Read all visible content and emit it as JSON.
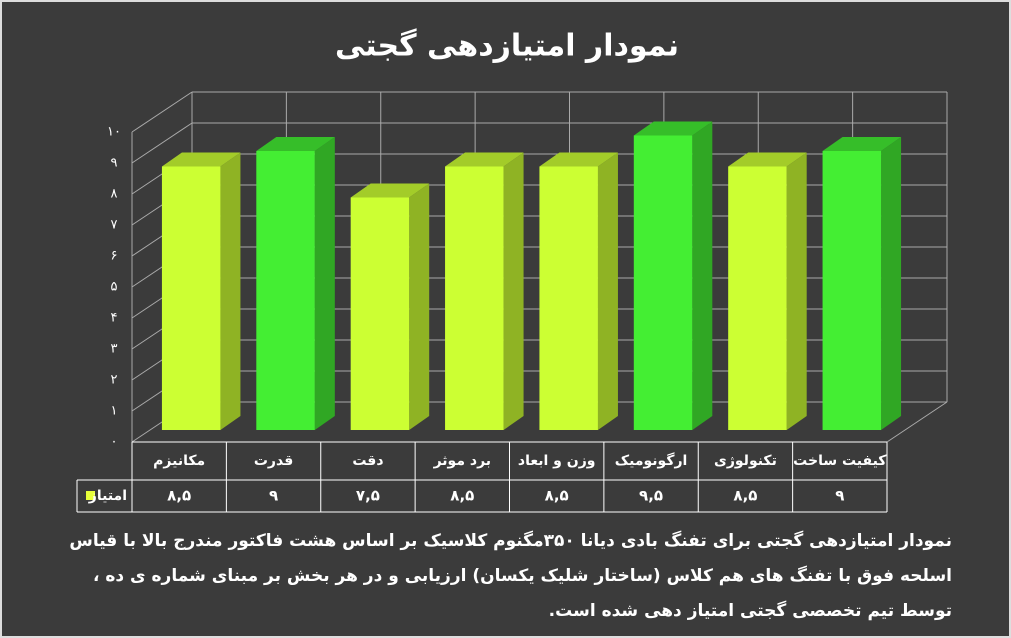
{
  "chart_data": {
    "type": "bar3d",
    "title": "نمودار امتیازدهی گجتی",
    "categories": [
      "مکانیزم",
      "قدرت",
      "دقت",
      "برد موثر",
      "وزن و ابعاد",
      "ارگونومیک",
      "تکنولوژی",
      "کیفیت ساخت"
    ],
    "series": [
      {
        "name": "امتیاز",
        "color": "#e8ff3a",
        "values": [
          8.5,
          9,
          7.5,
          8.5,
          8.5,
          9.5,
          8.5,
          9
        ],
        "value_labels": [
          "۸,۵",
          "۹",
          "۷,۵",
          "۸,۵",
          "۸,۵",
          "۹,۵",
          "۸,۵",
          "۹"
        ],
        "colors": [
          "#ccff33",
          "#44ee33",
          "#ccff33",
          "#ccff33",
          "#ccff33",
          "#44ee33",
          "#ccff33",
          "#44ee33"
        ]
      }
    ],
    "ylim": [
      0,
      10
    ],
    "yticks": [
      {
        "value": 0,
        "label": "۰"
      },
      {
        "value": 1,
        "label": "۱"
      },
      {
        "value": 2,
        "label": "۲"
      },
      {
        "value": 3,
        "label": "۳"
      },
      {
        "value": 4,
        "label": "۴"
      },
      {
        "value": 5,
        "label": "۵"
      },
      {
        "value": 6,
        "label": "۶"
      },
      {
        "value": 7,
        "label": "۷"
      },
      {
        "value": 8,
        "label": "۸"
      },
      {
        "value": 9,
        "label": "۹"
      },
      {
        "value": 10,
        "label": "۱۰"
      }
    ],
    "grid": true,
    "caption": "نمودار امتیازدهی گجتی برای تفنگ بادی دیانا ۳۵۰مگنوم کلاسیک بر اساس هشت فاکتور مندرج بالا با قیاس اسلحه فوق با تفنگ های هم کلاس (ساختار شلیک یکسان) ارزیابی و در هر بخش بر مبنای شماره ی ده ، توسط تیم تخصصی گجتی امتیاز دهی شده است."
  }
}
